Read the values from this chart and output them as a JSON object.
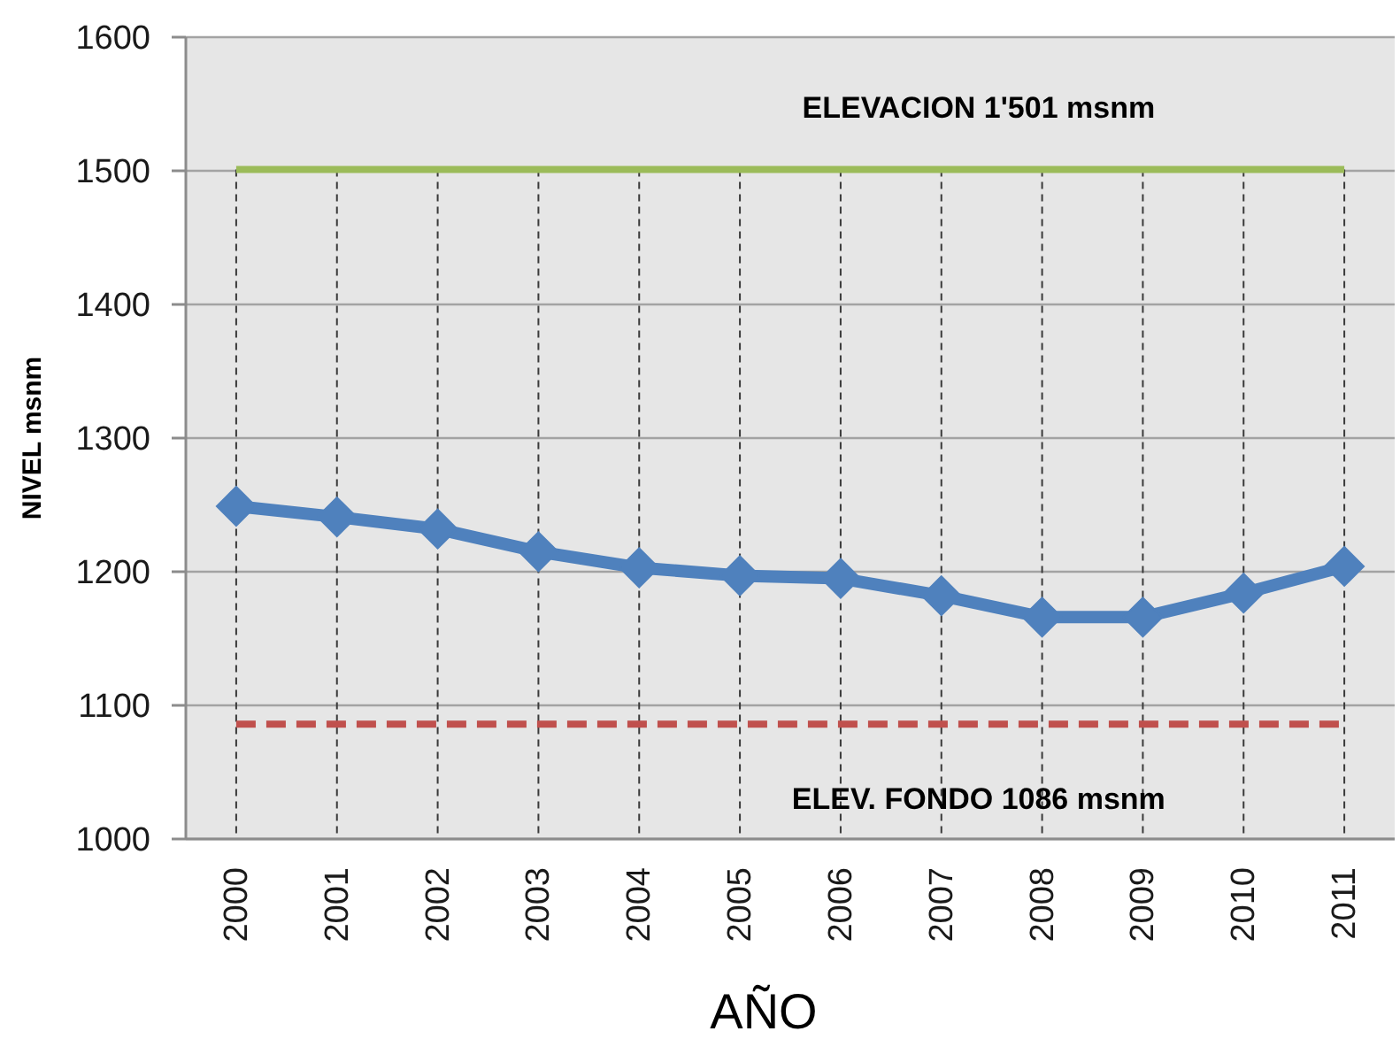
{
  "chart_data": {
    "type": "line",
    "xlabel": "AÑO",
    "ylabel": "NIVEL msnm",
    "categories": [
      "2000",
      "2001",
      "2002",
      "2003",
      "2004",
      "2005",
      "2006",
      "2007",
      "2008",
      "2009",
      "2010",
      "2011"
    ],
    "series": [
      {
        "color": "#4f81bd",
        "values": [
          1249,
          1241,
          1232,
          1215,
          1203,
          1197,
          1195,
          1182,
          1166,
          1166,
          1184,
          1204
        ]
      }
    ],
    "ylim": [
      1000,
      1600
    ],
    "yticks": [
      1000,
      1100,
      1200,
      1300,
      1400,
      1500,
      1600
    ],
    "grid": true,
    "marker": "diamond",
    "ref_lines": [
      {
        "axis": "y",
        "value": 1501,
        "label": "ELEVACION 1'501 msnm",
        "color": "#9bbb59",
        "line_style": "solid"
      },
      {
        "axis": "y",
        "value": 1086,
        "label": "ELEV. FONDO 1086 msnm",
        "color": "#c0504d",
        "line_style": "dashed"
      }
    ]
  }
}
